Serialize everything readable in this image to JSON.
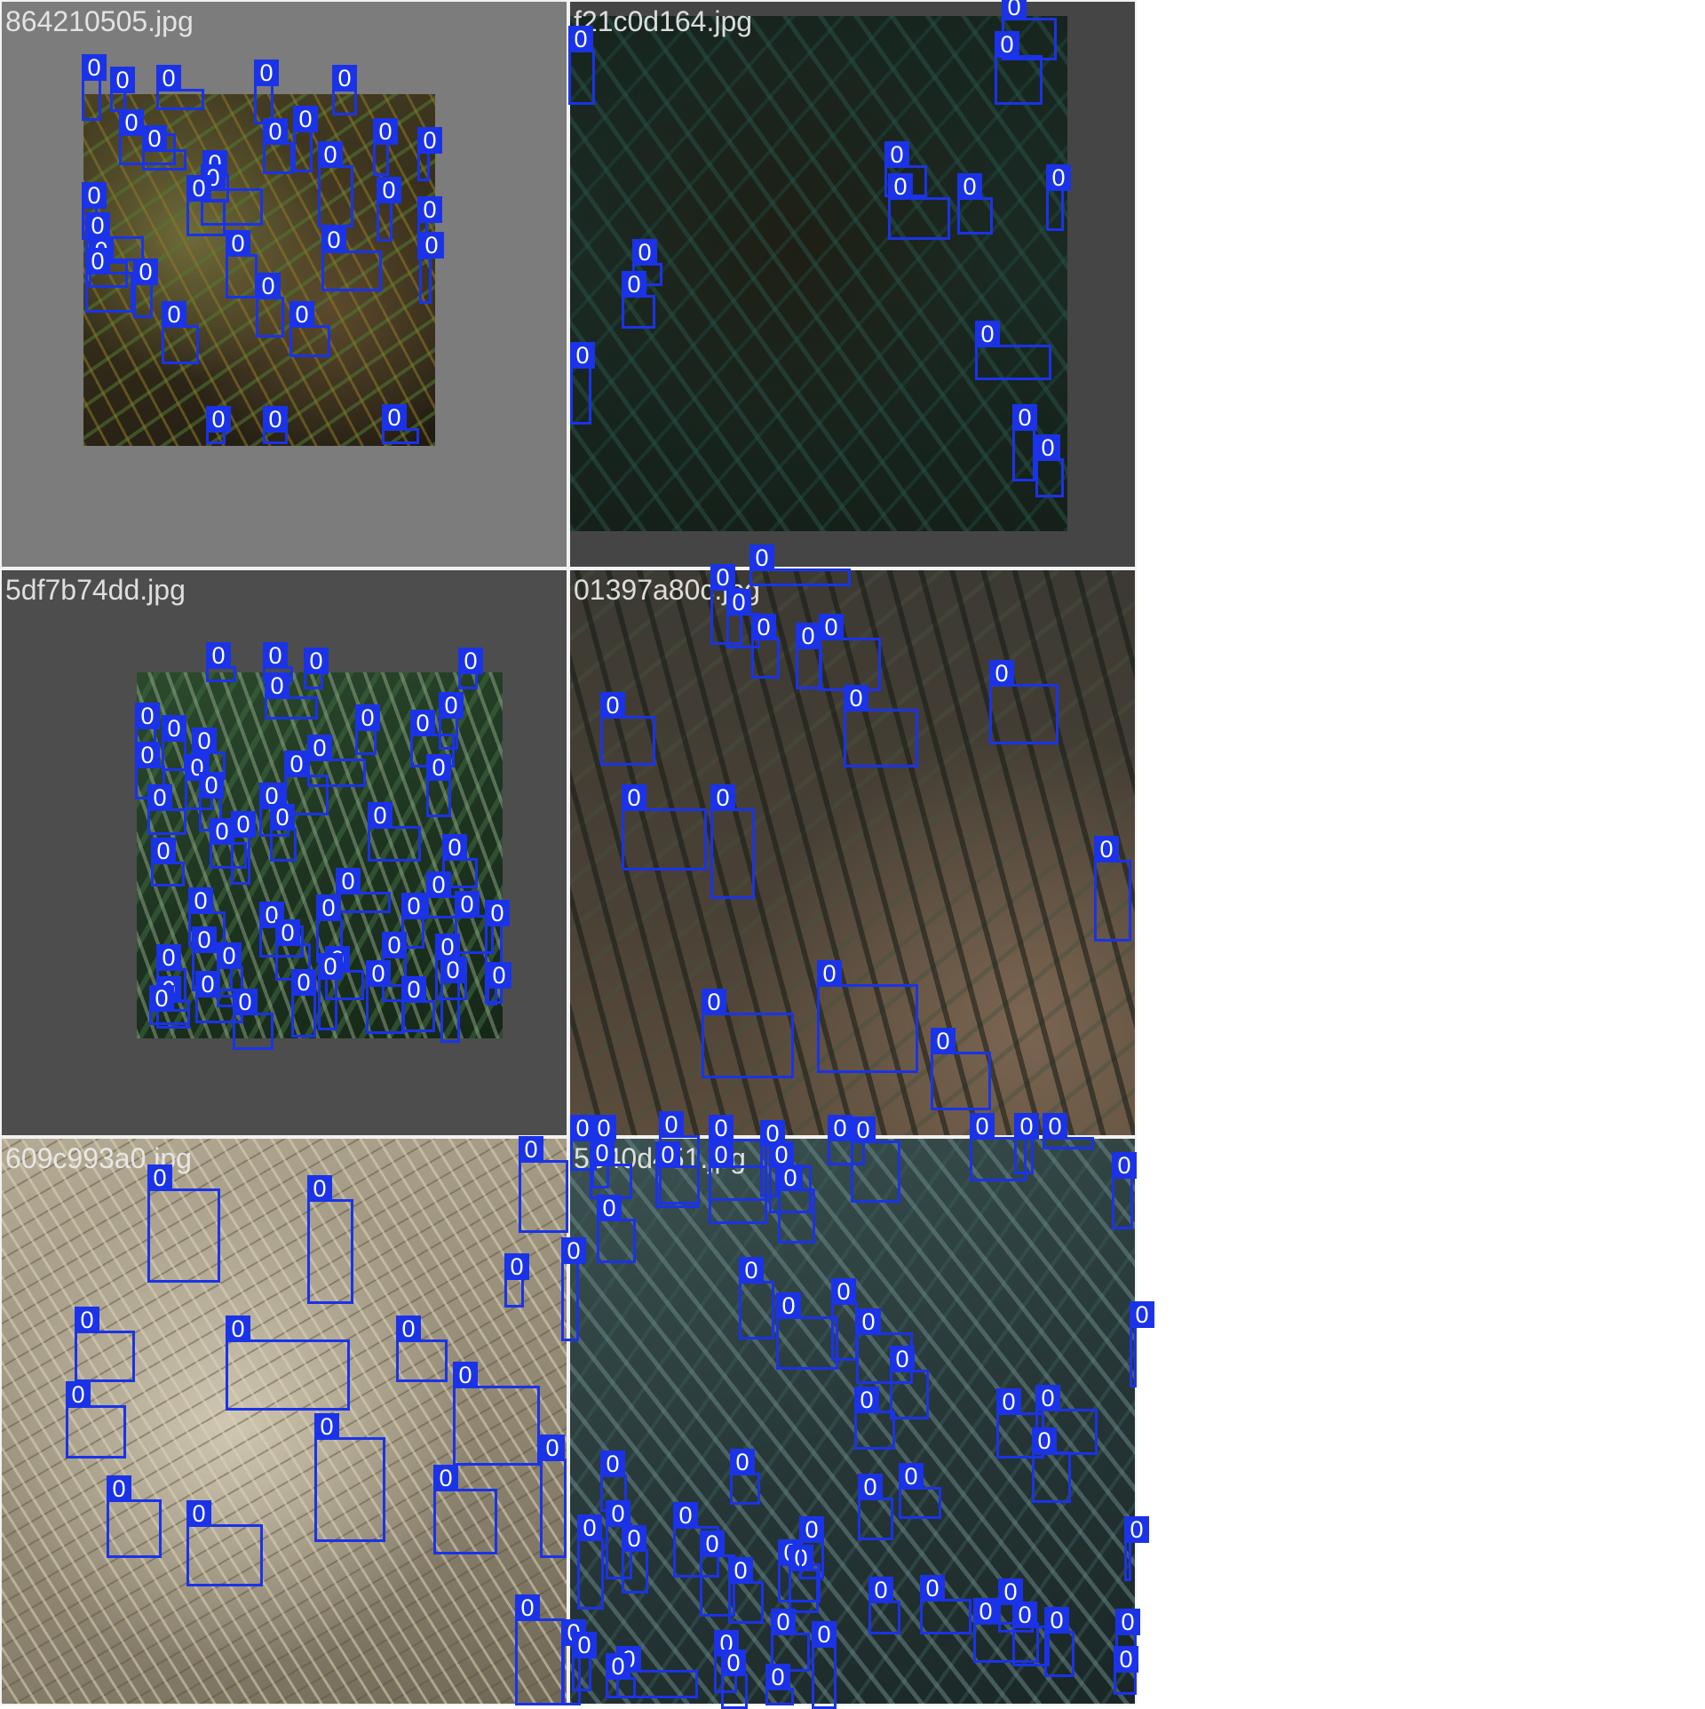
{
  "mosaic": {
    "tiles": [
      {
        "filename": "864210505.jpg"
      },
      {
        "filename": "f21c0d164.jpg"
      },
      {
        "filename": "5df7b74dd.jpg"
      },
      {
        "filename": "01397a80c.jpg"
      },
      {
        "filename": "609c993a0.jpg"
      },
      {
        "filename": "5e40d451.jpg"
      }
    ],
    "class_label": "0",
    "box_color": "#1a33e8"
  }
}
